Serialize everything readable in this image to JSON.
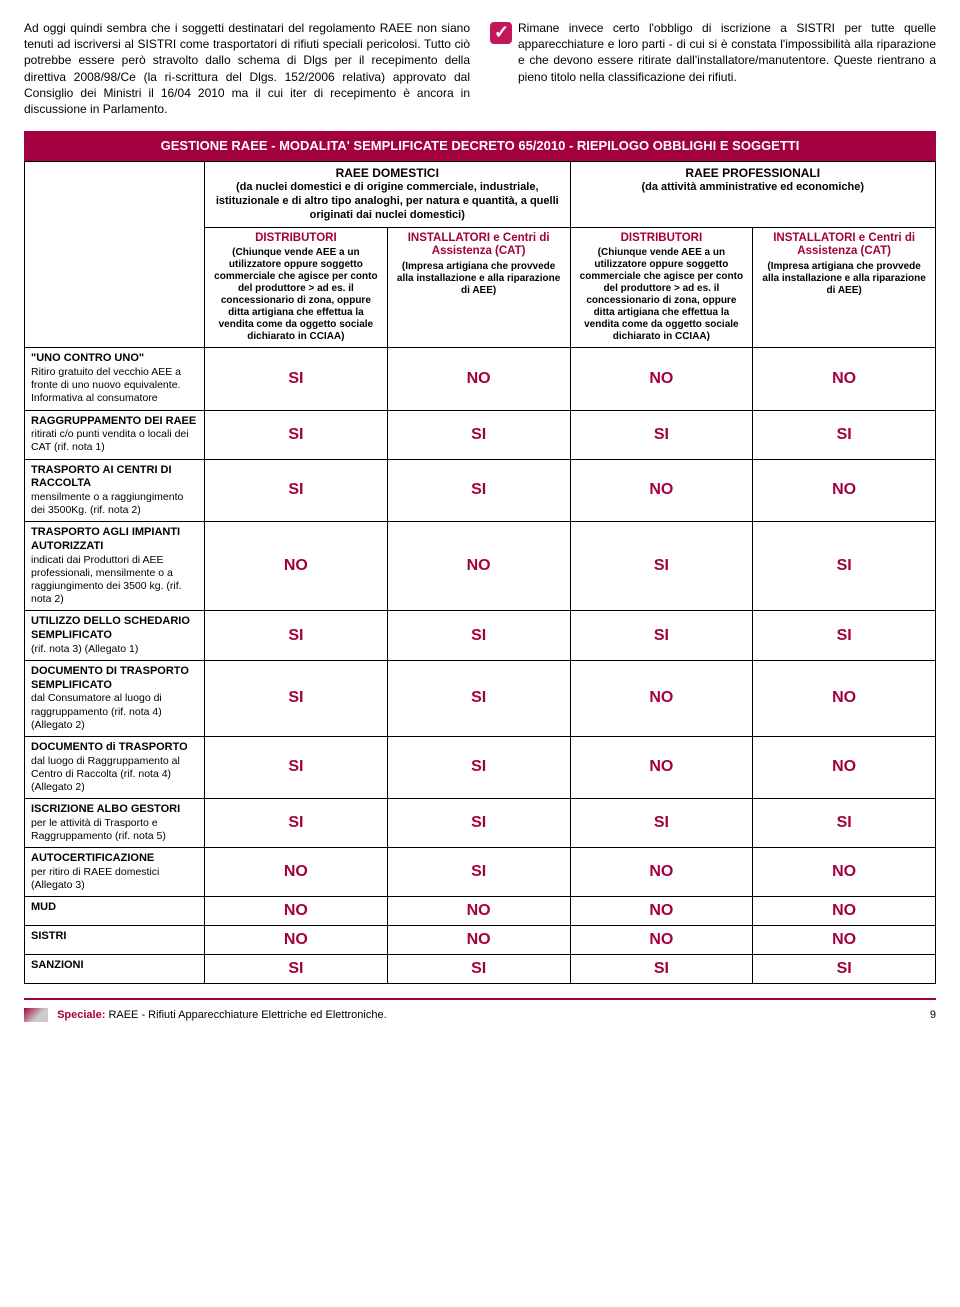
{
  "intro": {
    "left": "Ad oggi quindi sembra che i soggetti destinatari del regolamento RAEE non siano tenuti ad iscriversi al SISTRI come trasportatori di rifiuti speciali pericolosi. Tutto ciò potrebbe essere però stravolto dallo schema di Dlgs per il recepimento della direttiva 2008/98/Ce (la ri-scrittura del Dlgs. 152/2006 relativa) approvato dal Consiglio dei Ministri il 16/04 2010 ma il cui iter di recepimento è ancora in discussione in Parlamento.",
    "right": "Rimane invece certo l'obbligo di iscrizione a SISTRI per tutte quelle apparecchiature e loro parti - di cui si è constata l'impossibilità alla riparazione e che devono essere ritirate dall'installatore/manutentore. Queste rientrano a pieno titolo nella classificazione dei rifiuti."
  },
  "table": {
    "title": "GESTIONE RAEE - MODALITA' SEMPLIFICATE DECRETO 65/2010 - RIEPILOGO OBBLIGHI E SOGGETTI",
    "group_headers": {
      "domestici": {
        "title": "RAEE DOMESTICI",
        "desc": "(da nuclei domestici e di origine commerciale, industriale, istituzionale e di altro tipo analoghi, per natura e quantità, a quelli originati dai nuclei domestici)"
      },
      "professionali": {
        "title": "RAEE PROFESSIONALI",
        "desc": "(da attività amministrative ed economiche)"
      }
    },
    "sub_headers": {
      "distributori": {
        "title": "DISTRIBUTORI",
        "desc": "(Chiunque vende AEE a un utilizzatore oppure soggetto commerciale che agisce per conto del produttore > ad es. il concessionario di zona, oppure ditta artigiana che effettua la vendita come da oggetto sociale dichiarato in CCIAA)"
      },
      "installatori": {
        "title": "INSTALLATORI e Centri di Assistenza (CAT)",
        "desc": "(Impresa artigiana che provvede alla installazione e alla riparazione di AEE)"
      }
    },
    "rows": [
      {
        "label_bold": "\"UNO CONTRO UNO\"",
        "label_rest": "Ritiro gratuito del vecchio AEE a fronte di uno nuovo equivalente. Informativa al consumatore",
        "v": [
          "SI",
          "NO",
          "NO",
          "NO"
        ]
      },
      {
        "label_bold": "RAGGRUPPAMENTO DEI RAEE",
        "label_rest": " ritirati c/o punti vendita o locali dei CAT (rif. nota 1)",
        "v": [
          "SI",
          "SI",
          "SI",
          "SI"
        ]
      },
      {
        "label_bold": "TRASPORTO AI CENTRI DI RACCOLTA",
        "label_rest": "mensilmente o a raggiungimento dei 3500Kg. (rif. nota 2)",
        "v": [
          "SI",
          "SI",
          "NO",
          "NO"
        ]
      },
      {
        "label_bold": "TRASPORTO AGLI IMPIANTI AUTORIZZATI",
        "label_rest": "indicati dai Produttori di AEE professionali, mensilmente o a raggiungimento dei 3500 kg. (rif. nota 2)",
        "v": [
          "NO",
          "NO",
          "SI",
          "SI"
        ]
      },
      {
        "label_bold": "UTILIZZO DELLO SCHEDARIO SEMPLIFICATO",
        "label_rest": "(rif. nota 3) (Allegato 1)",
        "v": [
          "SI",
          "SI",
          "SI",
          "SI"
        ]
      },
      {
        "label_bold": "DOCUMENTO DI TRASPORTO SEMPLIFICATO",
        "label_rest": "dal Consumatore al luogo di raggruppamento (rif. nota 4) (Allegato 2)",
        "v": [
          "SI",
          "SI",
          "NO",
          "NO"
        ]
      },
      {
        "label_bold": "DOCUMENTO di TRASPORTO",
        "label_rest": " dal luogo di Raggruppamento al Centro di Raccolta (rif. nota 4) (Allegato 2)",
        "v": [
          "SI",
          "SI",
          "NO",
          "NO"
        ]
      },
      {
        "label_bold": "ISCRIZIONE ALBO GESTORI",
        "label_rest": "per le attività di Trasporto e Raggruppamento (rif. nota 5)",
        "v": [
          "SI",
          "SI",
          "SI",
          "SI"
        ]
      },
      {
        "label_bold": "AUTOCERTIFICAZIONE",
        "label_rest": "per ritiro di RAEE domestici (Allegato 3)",
        "v": [
          "NO",
          "SI",
          "NO",
          "NO"
        ]
      },
      {
        "label_bold": "MUD",
        "label_rest": "",
        "v": [
          "NO",
          "NO",
          "NO",
          "NO"
        ]
      },
      {
        "label_bold": "SISTRI",
        "label_rest": "",
        "v": [
          "NO",
          "NO",
          "NO",
          "NO"
        ]
      },
      {
        "label_bold": "SANZIONI",
        "label_rest": "",
        "v": [
          "SI",
          "SI",
          "SI",
          "SI"
        ]
      }
    ]
  },
  "footer": {
    "speciale_label": "Speciale:",
    "speciale_text": " RAEE - Rifiuti Apparecchiature Elettriche ed Elettroniche.",
    "page": "9"
  },
  "colors": {
    "accent": "#a3003f",
    "text": "#000000",
    "bg": "#ffffff"
  }
}
